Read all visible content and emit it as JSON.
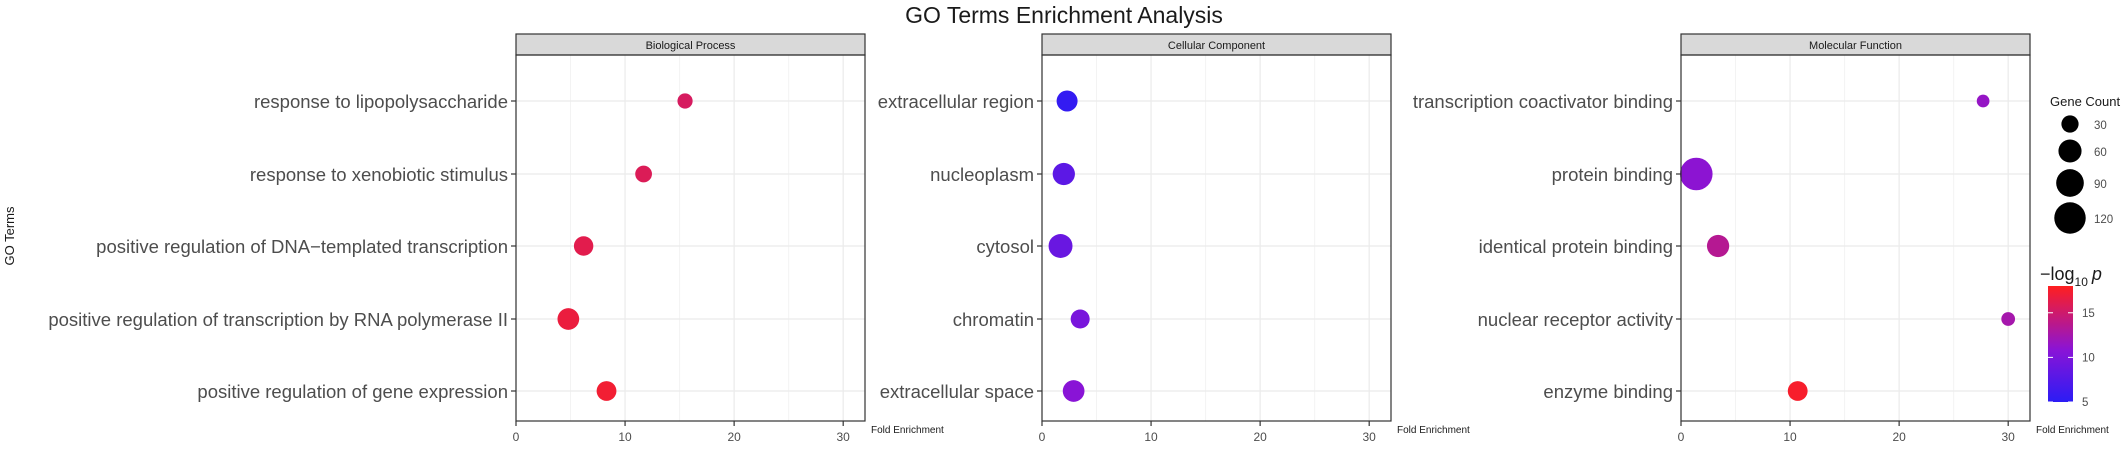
{
  "chart_data": {
    "type": "scatter",
    "title": "GO Terms Enrichment Analysis",
    "ylabel": "GO Terms",
    "xlabel": "Fold Enrichment",
    "xlim": [
      0,
      32
    ],
    "x_ticks": [
      0,
      10,
      20,
      30
    ],
    "grid": true,
    "panels": [
      {
        "name": "Biological Process",
        "terms": [
          {
            "label": "response to lipopolysaccharide",
            "fold": 15.5,
            "count": 22,
            "neglog10p": 15.5
          },
          {
            "label": "response to xenobiotic stimulus",
            "fold": 11.7,
            "count": 28,
            "neglog10p": 15.8
          },
          {
            "label": "positive regulation of DNA−templated transcription",
            "fold": 6.2,
            "count": 40,
            "neglog10p": 16.2
          },
          {
            "label": "positive regulation of transcription by RNA polymerase II",
            "fold": 4.8,
            "count": 52,
            "neglog10p": 16.8
          },
          {
            "label": "positive regulation of gene expression",
            "fold": 8.3,
            "count": 42,
            "neglog10p": 17.2
          }
        ]
      },
      {
        "name": "Cellular Component",
        "terms": [
          {
            "label": "extracellular region",
            "fold": 2.3,
            "count": 48,
            "neglog10p": 5.5
          },
          {
            "label": "nucleoplasm",
            "fold": 2.0,
            "count": 55,
            "neglog10p": 8.0
          },
          {
            "label": "cytosol",
            "fold": 1.7,
            "count": 65,
            "neglog10p": 8.8
          },
          {
            "label": "chromatin",
            "fold": 3.5,
            "count": 38,
            "neglog10p": 9.8
          },
          {
            "label": "extracellular space",
            "fold": 2.9,
            "count": 52,
            "neglog10p": 10.8
          }
        ]
      },
      {
        "name": "Molecular Function",
        "terms": [
          {
            "label": "transcription coactivator binding",
            "fold": 27.7,
            "count": 14,
            "neglog10p": 11.5
          },
          {
            "label": "protein binding",
            "fold": 1.4,
            "count": 130,
            "neglog10p": 11.0
          },
          {
            "label": "identical protein binding",
            "fold": 3.4,
            "count": 55,
            "neglog10p": 13.5
          },
          {
            "label": "nuclear receptor activity",
            "fold": 30.0,
            "count": 17,
            "neglog10p": 12.5
          },
          {
            "label": "enzyme binding",
            "fold": 10.7,
            "count": 42,
            "neglog10p": 17.5
          }
        ]
      }
    ],
    "size_legend": {
      "title": "Gene Count",
      "values": [
        30,
        60,
        90,
        120
      ]
    },
    "color_legend": {
      "title_prefix": "−log",
      "title_sub": "10",
      "title_var": "p",
      "range": [
        5,
        18
      ],
      "ticks": [
        5,
        10,
        15
      ],
      "colors": {
        "low": "#2b1cf5",
        "mid": "#8a14d6",
        "high": "#ff1f1f"
      }
    },
    "colors": {
      "strip_bg": "#d9d9d9",
      "panel_border": "#333333",
      "grid": "#ebebeb",
      "text": "#4d4d4d",
      "title": "#1a1a1a"
    }
  }
}
